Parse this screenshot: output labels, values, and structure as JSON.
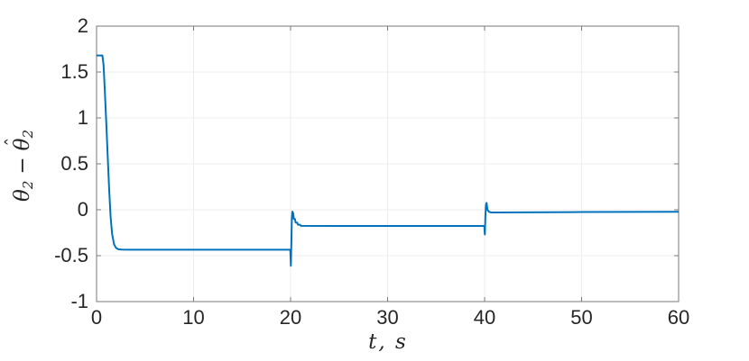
{
  "colors": {
    "background": "#ffffff",
    "line": "#0072BD",
    "grid": "#ececec",
    "axis": "#7a7a7a",
    "tick_text": "#262626",
    "label_text": "#262626"
  },
  "chart_data": {
    "type": "line",
    "title": "",
    "xlabel": "t, s",
    "ylabel": "θ₂ − θ̂₂",
    "ylabel_parts": {
      "theta1": "θ",
      "sub1": "2",
      "minus": "−",
      "hat": "ˆ",
      "theta2": "θ",
      "sub2": "2"
    },
    "xlim": [
      0,
      60
    ],
    "ylim": [
      -1,
      2
    ],
    "xticks": [
      0,
      10,
      20,
      30,
      40,
      50,
      60
    ],
    "xtick_labels": [
      "0",
      "10",
      "20",
      "30",
      "40",
      "50",
      "60"
    ],
    "yticks": [
      -1,
      -0.5,
      0,
      0.5,
      1,
      1.5,
      2
    ],
    "ytick_labels": [
      "-1",
      "-0.5",
      "0",
      "0.5",
      "1",
      "1.5",
      "2"
    ],
    "grid": true,
    "legend": "none",
    "series": [
      {
        "name": "theta2-estimation-error",
        "color": "#0072BD",
        "points": [
          [
            0,
            1.68
          ],
          [
            0.6,
            1.68
          ],
          [
            0.72,
            1.58
          ],
          [
            0.85,
            1.3
          ],
          [
            1.0,
            0.95
          ],
          [
            1.15,
            0.58
          ],
          [
            1.3,
            0.22
          ],
          [
            1.45,
            -0.08
          ],
          [
            1.6,
            -0.26
          ],
          [
            1.8,
            -0.375
          ],
          [
            2.0,
            -0.415
          ],
          [
            2.25,
            -0.43
          ],
          [
            2.6,
            -0.434
          ],
          [
            3.5,
            -0.435
          ],
          [
            19.97,
            -0.435
          ],
          [
            20.0,
            -0.52
          ],
          [
            20.03,
            -0.61
          ],
          [
            20.08,
            -0.38
          ],
          [
            20.13,
            -0.1
          ],
          [
            20.18,
            -0.02
          ],
          [
            20.28,
            -0.04
          ],
          [
            20.33,
            -0.1
          ],
          [
            20.45,
            -0.1
          ],
          [
            20.52,
            -0.14
          ],
          [
            20.68,
            -0.14
          ],
          [
            20.76,
            -0.163
          ],
          [
            20.98,
            -0.163
          ],
          [
            21.06,
            -0.175
          ],
          [
            25,
            -0.176
          ],
          [
            39.97,
            -0.176
          ],
          [
            40.0,
            -0.24
          ],
          [
            40.03,
            -0.27
          ],
          [
            40.08,
            -0.08
          ],
          [
            40.14,
            0.05
          ],
          [
            40.2,
            0.075
          ],
          [
            40.3,
            0.0
          ],
          [
            40.45,
            -0.022
          ],
          [
            40.7,
            -0.03
          ],
          [
            41.5,
            -0.03
          ],
          [
            44,
            -0.028
          ],
          [
            50,
            -0.025
          ],
          [
            60,
            -0.022
          ]
        ]
      }
    ]
  }
}
